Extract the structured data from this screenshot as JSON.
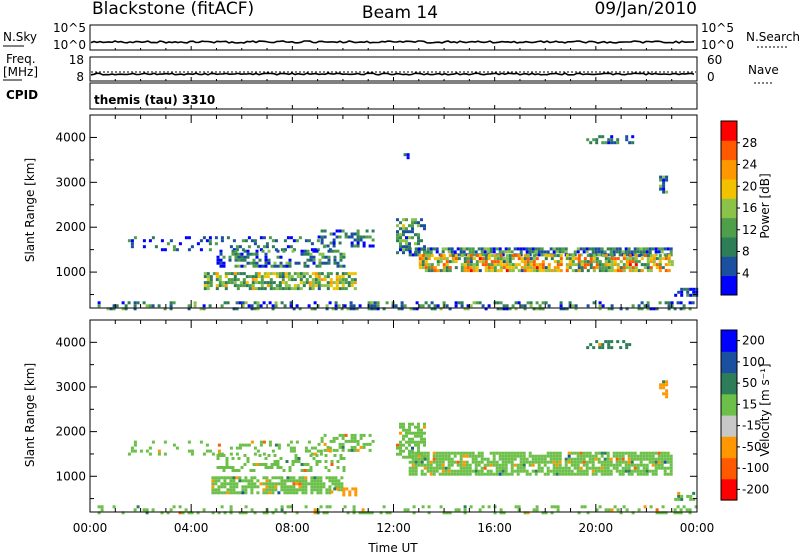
{
  "header": {
    "station": "Blackstone (fitACF)",
    "beam": "Beam 14",
    "date": "09/Jan/2010"
  },
  "strips": {
    "nsky": {
      "label": "N.Sky",
      "ticks": [
        "10^5",
        "10^0"
      ],
      "right_label": "N.Search",
      "right_ticks": [
        "10^5",
        "10^0"
      ]
    },
    "freq": {
      "label_top": "Freq.",
      "label_bottom": "[MHz]",
      "ticks": [
        "18",
        "8"
      ],
      "right_label": "Nave",
      "right_ticks": [
        "60",
        "0"
      ]
    },
    "cpid": {
      "label": "CPID",
      "value": "themis (tau) 3310"
    }
  },
  "colors": {
    "power_scale": [
      "#0000ff",
      "#1b4fa0",
      "#2e7d59",
      "#4f9e4a",
      "#8bc34a",
      "#f2c200",
      "#ff9800",
      "#ff5a00",
      "#ff0000"
    ],
    "velocity_scale": [
      "#ff0000",
      "#ff5a00",
      "#ff9800",
      "#c8c8c8",
      "#6cc04a",
      "#2e7d59",
      "#1b4fa0",
      "#0000ff"
    ]
  },
  "chart_data": [
    {
      "type": "heatmap",
      "name": "power",
      "ylabel": "Slant Range [km]",
      "xlabel": "Time UT",
      "xlim": [
        0,
        24
      ],
      "ylim": [
        200,
        4500
      ],
      "x_tick_labels": [
        "00:00",
        "04:00",
        "08:00",
        "12:00",
        "16:00",
        "20:00",
        "00:00"
      ],
      "y_ticks": [
        1000,
        2000,
        3000,
        4000
      ],
      "colorbar": {
        "label": "Power [dB]",
        "ticks": [
          "4",
          "8",
          "12",
          "16",
          "20",
          "24",
          "28"
        ],
        "range": [
          0,
          30
        ]
      },
      "regions": [
        {
          "x_start": 0.3,
          "x_end": 24,
          "y_start": 200,
          "y_end": 350,
          "value": 8,
          "density": 0.35
        },
        {
          "x_start": 1.5,
          "x_end": 9.5,
          "y_start": 1500,
          "y_end": 1800,
          "value": 6,
          "density": 0.25
        },
        {
          "x_start": 5.0,
          "x_end": 10.0,
          "y_start": 1150,
          "y_end": 1500,
          "value": 8,
          "density": 0.45
        },
        {
          "x_start": 4.5,
          "x_end": 10.5,
          "y_start": 600,
          "y_end": 1000,
          "value": 14,
          "density": 0.7
        },
        {
          "x_start": 9.0,
          "x_end": 11.2,
          "y_start": 1600,
          "y_end": 1950,
          "value": 6,
          "density": 0.4
        },
        {
          "x_start": 12.1,
          "x_end": 13.2,
          "y_start": 1450,
          "y_end": 2200,
          "value": 10,
          "density": 0.6
        },
        {
          "x_start": 12.6,
          "x_end": 23.0,
          "y_start": 1400,
          "y_end": 1550,
          "value": 8,
          "density": 0.8
        },
        {
          "x_start": 13.0,
          "x_end": 23.0,
          "y_start": 1000,
          "y_end": 1400,
          "value": 20,
          "density": 0.75
        },
        {
          "x_start": 12.4,
          "x_end": 12.6,
          "y_start": 3550,
          "y_end": 3650,
          "value": 6,
          "density": 0.6
        },
        {
          "x_start": 19.5,
          "x_end": 21.5,
          "y_start": 3850,
          "y_end": 4050,
          "value": 6,
          "density": 0.4
        },
        {
          "x_start": 22.5,
          "x_end": 22.8,
          "y_start": 2800,
          "y_end": 3150,
          "value": 8,
          "density": 0.6
        },
        {
          "x_start": 23.1,
          "x_end": 24.0,
          "y_start": 450,
          "y_end": 650,
          "value": 6,
          "density": 0.6
        }
      ]
    },
    {
      "type": "heatmap",
      "name": "velocity",
      "ylabel": "Slant Range [km]",
      "xlabel": "Time UT",
      "xlim": [
        0,
        24
      ],
      "ylim": [
        200,
        4500
      ],
      "x_tick_labels": [
        "00:00",
        "04:00",
        "08:00",
        "12:00",
        "16:00",
        "20:00",
        "00:00"
      ],
      "y_ticks": [
        1000,
        2000,
        3000,
        4000
      ],
      "colorbar": {
        "label": "Velocity [m s⁻¹]",
        "ticks": [
          "-200",
          "-100",
          "-50",
          "-15",
          "15",
          "50",
          "100",
          "200"
        ],
        "range": [
          -250,
          250
        ]
      },
      "regions": [
        {
          "x_start": 0.3,
          "x_end": 24,
          "y_start": 200,
          "y_end": 350,
          "value": 0,
          "density": 0.25
        },
        {
          "x_start": 1.5,
          "x_end": 9.5,
          "y_start": 1500,
          "y_end": 1800,
          "value": 0,
          "density": 0.2
        },
        {
          "x_start": 5.0,
          "x_end": 10.0,
          "y_start": 1150,
          "y_end": 1500,
          "value": 0,
          "density": 0.35
        },
        {
          "x_start": 4.8,
          "x_end": 10.0,
          "y_start": 650,
          "y_end": 1000,
          "value": 0,
          "density": 0.75
        },
        {
          "x_start": 9.5,
          "x_end": 10.5,
          "y_start": 600,
          "y_end": 750,
          "value": -60,
          "density": 0.5
        },
        {
          "x_start": 9.0,
          "x_end": 11.2,
          "y_start": 1600,
          "y_end": 1950,
          "value": 0,
          "density": 0.35
        },
        {
          "x_start": 12.1,
          "x_end": 13.2,
          "y_start": 1450,
          "y_end": 2200,
          "value": 0,
          "density": 0.6
        },
        {
          "x_start": 12.6,
          "x_end": 23.0,
          "y_start": 1050,
          "y_end": 1550,
          "value": 0,
          "density": 0.8
        },
        {
          "x_start": 19.5,
          "x_end": 21.5,
          "y_start": 3850,
          "y_end": 4050,
          "value": 40,
          "density": 0.4
        },
        {
          "x_start": 22.5,
          "x_end": 22.8,
          "y_start": 2800,
          "y_end": 3150,
          "value": -60,
          "density": 0.6
        },
        {
          "x_start": 23.1,
          "x_end": 24.0,
          "y_start": 450,
          "y_end": 650,
          "value": 0,
          "density": 0.6
        }
      ]
    }
  ]
}
